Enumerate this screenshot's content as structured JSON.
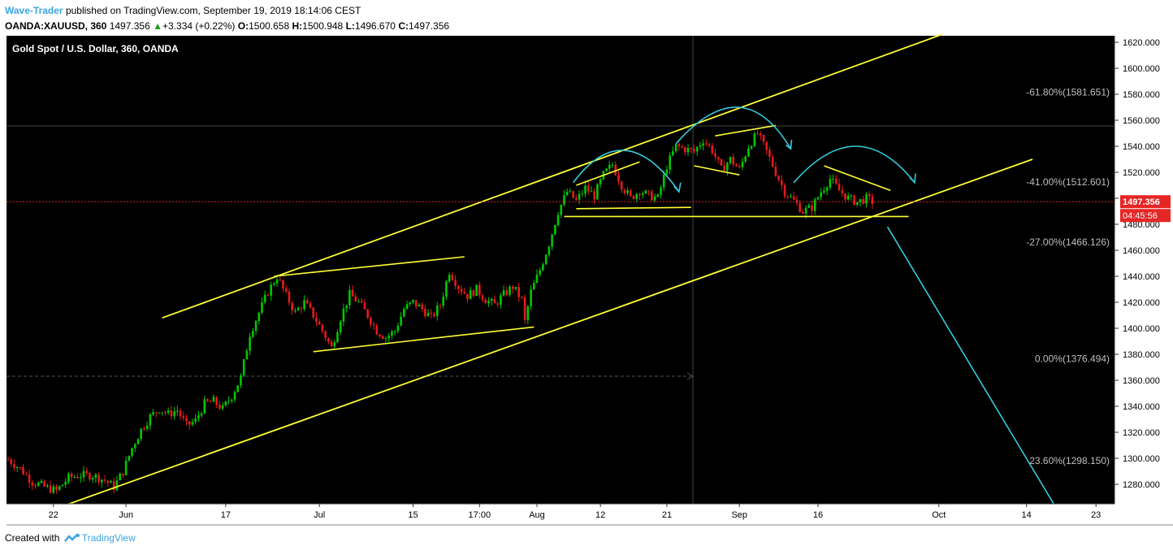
{
  "header": {
    "author": "Wave-Trader",
    "published": "published on TradingView.com, September 19, 2019 18:14:06 CEST",
    "symbol": "OANDA:XAUUSD, 360",
    "last": "1497.356",
    "change": "+3.334 (+0.22%)",
    "o_label": "O:",
    "o": "1500.658",
    "h_label": "H:",
    "h": "1500.948",
    "l_label": "L:",
    "l": "1496.670",
    "c_label": "C:",
    "c": "1497.356"
  },
  "footer": {
    "created": "Created with",
    "brand": "TradingView"
  },
  "colors": {
    "bg": "#000000",
    "up": "#00c800",
    "down": "#e61a1a",
    "trend": "#ffff33",
    "curve": "#33ccdd",
    "price_tag": "#e62525",
    "axis_text": "#000000",
    "fib_text": "#bfbfbf"
  },
  "chart_data": {
    "type": "candlestick",
    "title": "Gold Spot / U.S. Dollar, 360, OANDA",
    "ylim": [
      1265,
      1625
    ],
    "y_ticks": [
      "1620.000",
      "1600.000",
      "1580.000",
      "1560.000",
      "1540.000",
      "1520.000",
      "1500.000",
      "1480.000",
      "1460.000",
      "1440.000",
      "1420.000",
      "1400.000",
      "1380.000",
      "1360.000",
      "1340.000",
      "1320.000",
      "1300.000",
      "1280.000"
    ],
    "x_ticks": [
      "22",
      "Jun",
      "17",
      "Jul",
      "15",
      "17:00",
      "Aug",
      "12",
      "21",
      "Sep",
      "16",
      "Oct",
      "14",
      "23"
    ],
    "price_label": "1497.356",
    "countdown_label": "04:45:56",
    "fib_levels": [
      {
        "label": "-61.80%(1581.651)",
        "value": 1581.651
      },
      {
        "label": "-41.00%(1512.601)",
        "value": 1512.601
      },
      {
        "label": "-27.00%(1466.126)",
        "value": 1466.126
      },
      {
        "label": "0.00%(1376.494)",
        "value": 1376.494
      },
      {
        "label": "23.60%(1298.150)",
        "value": 1298.15
      }
    ],
    "ohlc_anchor_closes": [
      [
        0,
        1299
      ],
      [
        4,
        1292
      ],
      [
        8,
        1282
      ],
      [
        12,
        1278
      ],
      [
        16,
        1275
      ],
      [
        20,
        1285
      ],
      [
        24,
        1287
      ],
      [
        28,
        1287
      ],
      [
        32,
        1283
      ],
      [
        35,
        1278
      ],
      [
        38,
        1290
      ],
      [
        41,
        1308
      ],
      [
        44,
        1322
      ],
      [
        47,
        1332
      ],
      [
        50,
        1338
      ],
      [
        53,
        1334
      ],
      [
        56,
        1337
      ],
      [
        59,
        1325
      ],
      [
        62,
        1329
      ],
      [
        65,
        1342
      ],
      [
        68,
        1344
      ],
      [
        71,
        1338
      ],
      [
        74,
        1348
      ],
      [
        77,
        1362
      ],
      [
        80,
        1396
      ],
      [
        83,
        1412
      ],
      [
        86,
        1428
      ],
      [
        89,
        1440
      ],
      [
        92,
        1425
      ],
      [
        95,
        1412
      ],
      [
        98,
        1420
      ],
      [
        101,
        1410
      ],
      [
        104,
        1398
      ],
      [
        107,
        1385
      ],
      [
        110,
        1408
      ],
      [
        113,
        1426
      ],
      [
        116,
        1420
      ],
      [
        119,
        1410
      ],
      [
        122,
        1398
      ],
      [
        125,
        1393
      ],
      [
        128,
        1398
      ],
      [
        131,
        1415
      ],
      [
        134,
        1420
      ],
      [
        137,
        1415
      ],
      [
        140,
        1408
      ],
      [
        143,
        1418
      ],
      [
        146,
        1444
      ],
      [
        149,
        1432
      ],
      [
        152,
        1425
      ],
      [
        155,
        1430
      ],
      [
        158,
        1422
      ],
      [
        161,
        1418
      ],
      [
        164,
        1426
      ],
      [
        167,
        1432
      ],
      [
        170,
        1422
      ],
      [
        171,
        1405
      ],
      [
        173,
        1428
      ],
      [
        176,
        1445
      ],
      [
        179,
        1465
      ],
      [
        182,
        1490
      ],
      [
        185,
        1505
      ],
      [
        188,
        1498
      ],
      [
        191,
        1508
      ],
      [
        194,
        1502
      ],
      [
        197,
        1518
      ],
      [
        200,
        1526
      ],
      [
        203,
        1510
      ],
      [
        206,
        1500
      ],
      [
        209,
        1506
      ],
      [
        212,
        1502
      ],
      [
        215,
        1500
      ],
      [
        218,
        1525
      ],
      [
        221,
        1540
      ],
      [
        224,
        1538
      ],
      [
        227,
        1536
      ],
      [
        230,
        1545
      ],
      [
        233,
        1537
      ],
      [
        236,
        1522
      ],
      [
        239,
        1530
      ],
      [
        242,
        1522
      ],
      [
        245,
        1540
      ],
      [
        248,
        1550
      ],
      [
        251,
        1536
      ],
      [
        254,
        1520
      ],
      [
        257,
        1505
      ],
      [
        260,
        1498
      ],
      [
        263,
        1490
      ],
      [
        266,
        1493
      ],
      [
        269,
        1505
      ],
      [
        272,
        1515
      ],
      [
        275,
        1506
      ],
      [
        278,
        1500
      ],
      [
        281,
        1497
      ],
      [
        284,
        1500
      ],
      [
        286,
        1497.4
      ]
    ]
  }
}
